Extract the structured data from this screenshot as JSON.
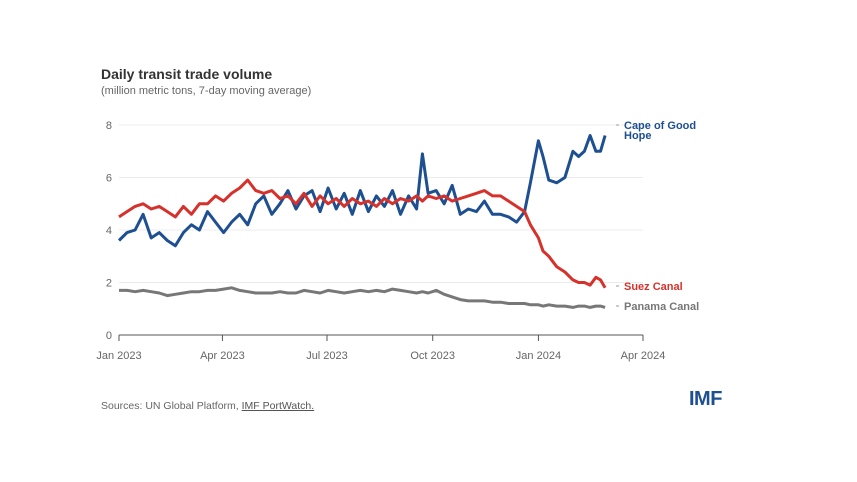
{
  "chart_data": {
    "type": "line",
    "title": "Daily transit trade volume",
    "subtitle": "(million metric tons, 7-day moving average)",
    "xlabel": "",
    "ylabel": "",
    "ylim": [
      0,
      8
    ],
    "yticks": [
      "0",
      "2",
      "4",
      "6",
      "8"
    ],
    "xlim": [
      "2023-01-01",
      "2024-04-01"
    ],
    "xticks": [
      {
        "date": "2023-01-01",
        "label": "Jan 2023"
      },
      {
        "date": "2023-04-01",
        "label": "Apr 2023"
      },
      {
        "date": "2023-07-01",
        "label": "Jul 2023"
      },
      {
        "date": "2023-10-01",
        "label": "Oct 2023"
      },
      {
        "date": "2024-01-01",
        "label": "Jan 2024"
      },
      {
        "date": "2024-04-01",
        "label": "Apr 2024"
      }
    ],
    "grid": true,
    "legend": "direct labels at line ends (right)",
    "x": [
      "2023-01-01",
      "2023-01-08",
      "2023-01-15",
      "2023-01-22",
      "2023-01-29",
      "2023-02-05",
      "2023-02-12",
      "2023-02-19",
      "2023-02-26",
      "2023-03-05",
      "2023-03-12",
      "2023-03-19",
      "2023-03-26",
      "2023-04-02",
      "2023-04-09",
      "2023-04-16",
      "2023-04-23",
      "2023-04-30",
      "2023-05-07",
      "2023-05-14",
      "2023-05-21",
      "2023-05-28",
      "2023-06-04",
      "2023-06-11",
      "2023-06-18",
      "2023-06-25",
      "2023-07-02",
      "2023-07-09",
      "2023-07-16",
      "2023-07-23",
      "2023-07-30",
      "2023-08-06",
      "2023-08-13",
      "2023-08-20",
      "2023-08-27",
      "2023-09-03",
      "2023-09-10",
      "2023-09-17",
      "2023-09-22",
      "2023-09-27",
      "2023-10-04",
      "2023-10-11",
      "2023-10-18",
      "2023-10-25",
      "2023-11-01",
      "2023-11-08",
      "2023-11-15",
      "2023-11-22",
      "2023-11-29",
      "2023-12-06",
      "2023-12-13",
      "2023-12-20",
      "2023-12-25",
      "2024-01-01",
      "2024-01-05",
      "2024-01-10",
      "2024-01-17",
      "2024-01-24",
      "2024-01-31",
      "2024-02-05",
      "2024-02-10",
      "2024-02-15",
      "2024-02-20",
      "2024-02-24",
      "2024-02-28"
    ],
    "series": [
      {
        "name": "Cape of Good Hope",
        "color": "#1d4f91",
        "values": [
          3.6,
          3.9,
          4.0,
          4.6,
          3.7,
          3.9,
          3.6,
          3.4,
          3.9,
          4.2,
          4.0,
          4.7,
          4.3,
          3.9,
          4.3,
          4.6,
          4.2,
          5.0,
          5.3,
          4.6,
          5.0,
          5.5,
          4.8,
          5.3,
          5.5,
          4.7,
          5.6,
          4.8,
          5.4,
          4.6,
          5.5,
          4.7,
          5.3,
          4.9,
          5.5,
          4.6,
          5.3,
          4.8,
          6.9,
          5.4,
          5.5,
          5.0,
          5.7,
          4.6,
          4.8,
          4.7,
          5.1,
          4.6,
          4.6,
          4.5,
          4.3,
          4.7,
          5.8,
          7.4,
          6.8,
          5.9,
          5.8,
          6.0,
          7.0,
          6.8,
          7.0,
          7.6,
          7.0,
          7.0,
          7.6
        ]
      },
      {
        "name": "Suez Canal",
        "color": "#d6312b",
        "values": [
          4.5,
          4.7,
          4.9,
          5.0,
          4.8,
          4.9,
          4.7,
          4.5,
          4.9,
          4.6,
          5.0,
          5.0,
          5.3,
          5.1,
          5.4,
          5.6,
          5.9,
          5.5,
          5.4,
          5.5,
          5.2,
          5.3,
          5.0,
          5.4,
          4.9,
          5.3,
          5.0,
          5.2,
          4.9,
          5.2,
          5.0,
          5.1,
          4.9,
          5.2,
          5.0,
          5.2,
          5.1,
          5.3,
          5.1,
          5.3,
          5.2,
          5.3,
          5.1,
          5.2,
          5.3,
          5.4,
          5.5,
          5.3,
          5.3,
          5.1,
          4.9,
          4.7,
          4.2,
          3.7,
          3.2,
          3.0,
          2.6,
          2.4,
          2.1,
          2.0,
          2.0,
          1.9,
          2.2,
          2.1,
          1.8
        ]
      },
      {
        "name": "Panama Canal",
        "color": "#777777",
        "values": [
          1.7,
          1.7,
          1.65,
          1.7,
          1.65,
          1.6,
          1.5,
          1.55,
          1.6,
          1.65,
          1.65,
          1.7,
          1.7,
          1.75,
          1.8,
          1.7,
          1.65,
          1.6,
          1.6,
          1.6,
          1.65,
          1.6,
          1.6,
          1.7,
          1.65,
          1.6,
          1.7,
          1.65,
          1.6,
          1.65,
          1.7,
          1.65,
          1.7,
          1.65,
          1.75,
          1.7,
          1.65,
          1.6,
          1.65,
          1.6,
          1.7,
          1.55,
          1.45,
          1.35,
          1.3,
          1.3,
          1.3,
          1.25,
          1.25,
          1.2,
          1.2,
          1.2,
          1.15,
          1.15,
          1.1,
          1.15,
          1.1,
          1.1,
          1.05,
          1.1,
          1.1,
          1.05,
          1.1,
          1.1,
          1.05
        ]
      }
    ]
  },
  "footer": {
    "sources_prefix": "Sources: UN Global Platform, ",
    "sources_link": "IMF PortWatch."
  },
  "logo": "IMF"
}
